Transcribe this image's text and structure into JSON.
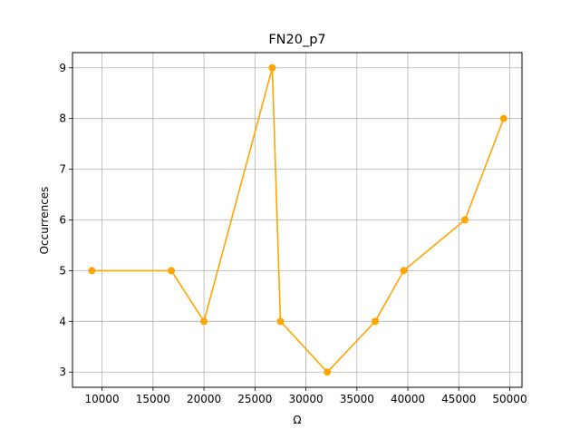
{
  "chart_data": {
    "type": "line",
    "title": "FN20_p7",
    "xlabel": "Ω",
    "ylabel": "Occurrences",
    "xlim": [
      7100,
      51200
    ],
    "ylim": [
      2.7,
      9.3
    ],
    "xticks": [
      10000,
      15000,
      20000,
      25000,
      30000,
      35000,
      40000,
      45000,
      50000
    ],
    "yticks": [
      3,
      4,
      5,
      6,
      7,
      8,
      9
    ],
    "grid": true,
    "series": [
      {
        "color": "#ffa500",
        "marker": "circle",
        "x": [
          9000,
          16800,
          20000,
          26700,
          27500,
          32100,
          36800,
          39600,
          45600,
          49400
        ],
        "y": [
          5,
          5,
          4,
          9,
          4,
          3,
          4,
          5,
          6,
          8
        ]
      }
    ]
  }
}
